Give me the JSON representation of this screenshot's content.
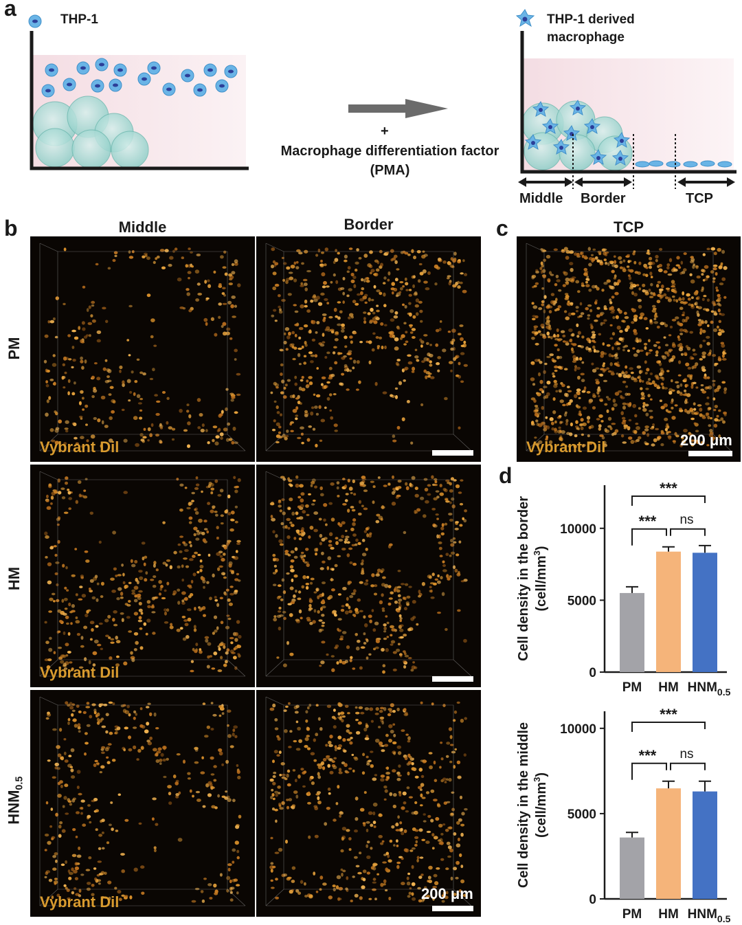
{
  "panel_a": {
    "letter": "a",
    "legend_thp1": "THP-1",
    "legend_macrophage_line1": "THP-1 derived",
    "legend_macrophage_line2": "macrophage",
    "plus": "+",
    "factor_line1": "Macrophage differentiation factor",
    "factor_line2": "(PMA)",
    "region_middle": "Middle",
    "region_border": "Border",
    "region_tcp": "TCP",
    "colors": {
      "cell": "#6ab4e6",
      "nucleus": "#2c3f99",
      "sphere": "#a9dcd6",
      "arrow": "#6b6b6b",
      "bg_tint": "#f7e4e8"
    }
  },
  "panel_b": {
    "letter": "b",
    "col_middle": "Middle",
    "col_border": "Border",
    "rows": [
      {
        "label": "PM",
        "sub": ""
      },
      {
        "label": "HM",
        "sub": ""
      },
      {
        "label": "HNM",
        "sub": "0.5"
      }
    ],
    "dye_label": "Vybrant Dil",
    "scale_label": "200 μm"
  },
  "panel_c": {
    "letter": "c",
    "title": "TCP",
    "dye_label": "Vybrant Dil",
    "scale_label": "200 μm"
  },
  "panel_d": {
    "letter": "d",
    "significance": {
      "pm_vs_hnm": "***",
      "pm_vs_hm": "***",
      "hm_vs_hnm": "ns"
    }
  },
  "chart_data": [
    {
      "type": "bar",
      "categories": [
        "PM",
        "HM",
        "HNM0.5"
      ],
      "category_display": [
        {
          "main": "PM",
          "sub": ""
        },
        {
          "main": "HM",
          "sub": ""
        },
        {
          "main": "HNM",
          "sub": "0.5"
        }
      ],
      "values": [
        5500,
        8380,
        8300
      ],
      "errors": [
        430,
        330,
        500
      ],
      "colors": [
        "#a3a3a8",
        "#f5b47a",
        "#4472c4"
      ],
      "ylabel_line1": "Cell density in the border",
      "ylabel_line2": "(cell/mm",
      "ylabel_sup": "3",
      "ylabel_tail": ")",
      "yticks": [
        0,
        5000,
        10000
      ],
      "ylim": [
        0,
        13000
      ]
    },
    {
      "type": "bar",
      "categories": [
        "PM",
        "HM",
        "HNM0.5"
      ],
      "category_display": [
        {
          "main": "PM",
          "sub": ""
        },
        {
          "main": "HM",
          "sub": ""
        },
        {
          "main": "HNM",
          "sub": "0.5"
        }
      ],
      "values": [
        3600,
        6480,
        6300
      ],
      "errors": [
        300,
        420,
        600
      ],
      "colors": [
        "#a3a3a8",
        "#f5b47a",
        "#4472c4"
      ],
      "ylabel_line1": "Cell density in the middle",
      "ylabel_line2": "(cell/mm",
      "ylabel_sup": "3",
      "ylabel_tail": ")",
      "yticks": [
        0,
        5000,
        10000
      ],
      "ylim": [
        0,
        11000
      ]
    }
  ]
}
